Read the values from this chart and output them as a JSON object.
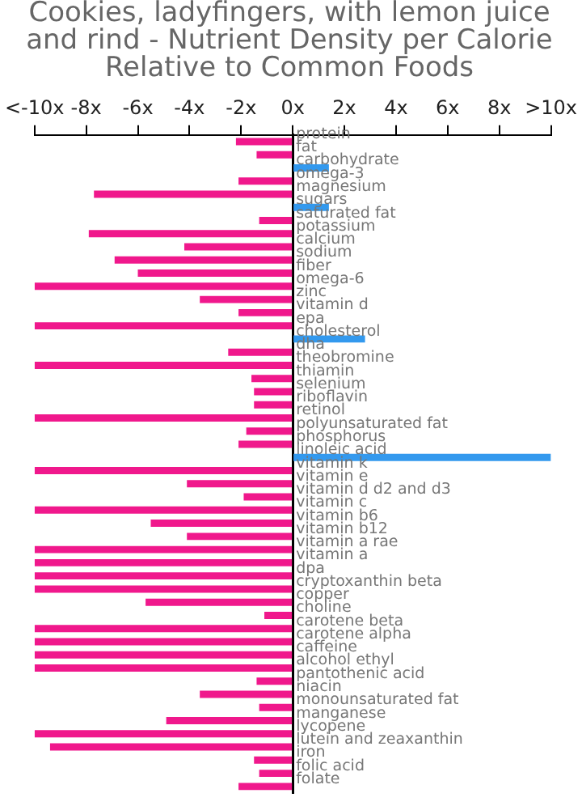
{
  "chart_data": {
    "type": "bar",
    "orientation": "horizontal",
    "title": "Cookies, ladyfingers, with lemon juice and rind - Nutrient Density per Calorie Relative to Common Foods",
    "categories": [
      "protein",
      "fat",
      "carbohydrate",
      "omega-3",
      "magnesium",
      "sugars",
      "saturated fat",
      "potassium",
      "calcium",
      "sodium",
      "fiber",
      "omega-6",
      "zinc",
      "vitamin d",
      "epa",
      "cholesterol",
      "dha",
      "theobromine",
      "thiamin",
      "selenium",
      "riboflavin",
      "retinol",
      "polyunsaturated fat",
      "phosphorus",
      "linoleic acid",
      "vitamin k",
      "vitamin e",
      "vitamin d d2 and d3",
      "vitamin c",
      "vitamin b6",
      "vitamin b12",
      "vitamin a rae",
      "vitamin a",
      "dpa",
      "cryptoxanthin beta",
      "copper",
      "choline",
      "carotene beta",
      "carotene alpha",
      "caffeine",
      "alcohol ethyl",
      "pantothenic acid",
      "niacin",
      "monounsaturated fat",
      "manganese",
      "lycopene",
      "lutein and zeaxanthin",
      "iron",
      "folic acid",
      "folate"
    ],
    "values": [
      -2.2,
      -1.4,
      1.4,
      -2.1,
      -7.7,
      1.4,
      -1.3,
      -7.9,
      -4.2,
      -6.9,
      -6.0,
      -10,
      -3.6,
      -2.1,
      -10,
      2.8,
      -2.5,
      -10,
      -1.6,
      -1.5,
      -1.5,
      -10,
      -1.8,
      -2.1,
      10,
      -10,
      -4.1,
      -1.9,
      -10,
      -5.5,
      -4.1,
      -10,
      -10,
      -10,
      -10,
      -5.7,
      -1.1,
      -10,
      -10,
      -10,
      -10,
      -1.4,
      -3.6,
      -1.3,
      -4.9,
      -10,
      -9.4,
      -1.5,
      -1.3,
      -2.1
    ],
    "colors": [
      "#f0188c",
      "#f0188c",
      "#3399ee",
      "#f0188c",
      "#f0188c",
      "#3399ee",
      "#f0188c",
      "#f0188c",
      "#f0188c",
      "#f0188c",
      "#f0188c",
      "#f0188c",
      "#f0188c",
      "#f0188c",
      "#f0188c",
      "#3399ee",
      "#f0188c",
      "#f0188c",
      "#f0188c",
      "#f0188c",
      "#f0188c",
      "#f0188c",
      "#f0188c",
      "#f0188c",
      "#3399ee",
      "#f0188c",
      "#f0188c",
      "#f0188c",
      "#f0188c",
      "#f0188c",
      "#f0188c",
      "#f0188c",
      "#f0188c",
      "#f0188c",
      "#f0188c",
      "#f0188c",
      "#f0188c",
      "#f0188c",
      "#f0188c",
      "#f0188c",
      "#f0188c",
      "#f0188c",
      "#f0188c",
      "#f0188c",
      "#f0188c",
      "#f0188c",
      "#f0188c",
      "#f0188c",
      "#f0188c",
      "#f0188c"
    ],
    "xlim": [
      -10,
      10
    ],
    "xticks": [
      {
        "value": -10,
        "label": "<-10x"
      },
      {
        "value": -8,
        "label": "-8x"
      },
      {
        "value": -6,
        "label": "-6x"
      },
      {
        "value": -4,
        "label": "-4x"
      },
      {
        "value": -2,
        "label": "-2x"
      },
      {
        "value": 0,
        "label": "0x"
      },
      {
        "value": 2,
        "label": "2x"
      },
      {
        "value": 4,
        "label": "4x"
      },
      {
        "value": 6,
        "label": "6x"
      },
      {
        "value": 8,
        "label": "8x"
      },
      {
        "value": 10,
        "label": ">10x"
      }
    ],
    "grid": false,
    "legend": false
  }
}
